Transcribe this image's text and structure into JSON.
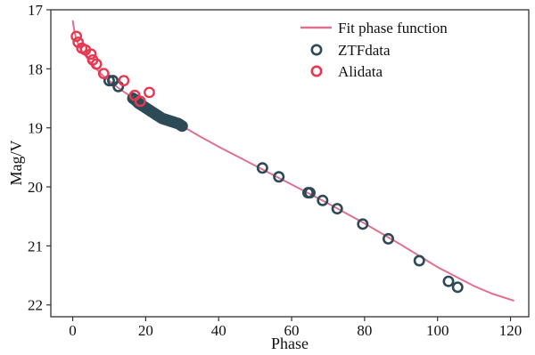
{
  "chart_data": {
    "type": "scatter",
    "title": "",
    "xlabel": "Phase",
    "ylabel": "Mag/V",
    "xlim": [
      -6,
      125
    ],
    "ylim": [
      22.2,
      17
    ],
    "y_inverted": true,
    "grid": false,
    "legend_placement": "top-right",
    "x_ticks": [
      0,
      20,
      40,
      60,
      80,
      100,
      120
    ],
    "y_ticks": [
      17,
      18,
      19,
      20,
      21,
      22
    ],
    "colors": {
      "fit": "#e0708f",
      "ztf": "#2e4a57",
      "ali": "#e8384f"
    },
    "series": [
      {
        "name": "Fit phase function",
        "kind": "line",
        "x": [
          0,
          0.5,
          1,
          2,
          3,
          4,
          5,
          6,
          8,
          10,
          12,
          14,
          16,
          18,
          20,
          22,
          25,
          28,
          30,
          35,
          40,
          45,
          50,
          55,
          60,
          65,
          70,
          75,
          80,
          85,
          90,
          95,
          100,
          105,
          110,
          115,
          121
        ],
        "y": [
          17.18,
          17.38,
          17.5,
          17.65,
          17.74,
          17.82,
          17.9,
          17.97,
          18.1,
          18.2,
          18.3,
          18.39,
          18.47,
          18.55,
          18.62,
          18.69,
          18.8,
          18.9,
          18.97,
          19.15,
          19.32,
          19.48,
          19.64,
          19.8,
          19.96,
          20.12,
          20.28,
          20.45,
          20.62,
          20.8,
          20.98,
          21.17,
          21.36,
          21.52,
          21.68,
          21.81,
          21.93
        ]
      },
      {
        "name": "ZTFdata",
        "kind": "scatter",
        "x": [
          10,
          11,
          12.5,
          16.5,
          17,
          17.5,
          18,
          18.5,
          19,
          19.5,
          20,
          20.5,
          21,
          21.5,
          22,
          22.5,
          23,
          23.5,
          24,
          24.5,
          25,
          25.5,
          26,
          26.5,
          27,
          27.5,
          28,
          28.5,
          29,
          29.5,
          30,
          52,
          56.5,
          64.5,
          65,
          68.5,
          72.5,
          79.5,
          86.5,
          95,
          103,
          105.5
        ],
        "y": [
          18.2,
          18.2,
          18.3,
          18.5,
          18.52,
          18.55,
          18.58,
          18.6,
          18.62,
          18.64,
          18.66,
          18.68,
          18.7,
          18.72,
          18.74,
          18.76,
          18.78,
          18.8,
          18.82,
          18.84,
          18.85,
          18.86,
          18.87,
          18.88,
          18.89,
          18.9,
          18.91,
          18.92,
          18.93,
          18.95,
          18.97,
          19.68,
          19.83,
          20.1,
          20.1,
          20.23,
          20.37,
          20.63,
          20.88,
          21.25,
          21.6,
          21.7
        ]
      },
      {
        "name": "Alidata",
        "kind": "scatter",
        "x": [
          1,
          1.5,
          2.5,
          3.5,
          5,
          5.5,
          6.5,
          8.5,
          14,
          17,
          18.5,
          21
        ],
        "y": [
          17.45,
          17.55,
          17.65,
          17.68,
          17.75,
          17.85,
          17.92,
          18.08,
          18.2,
          18.45,
          18.55,
          18.4
        ]
      }
    ]
  }
}
